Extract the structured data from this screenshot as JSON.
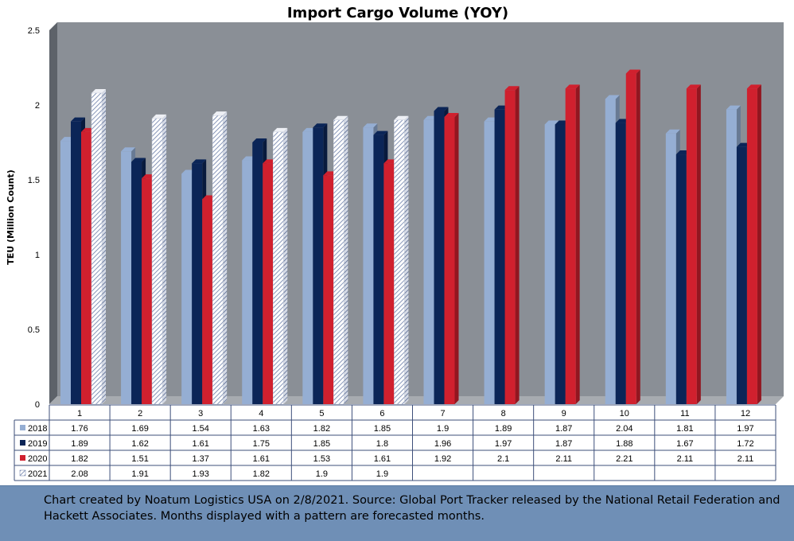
{
  "chart_data": {
    "type": "bar",
    "title": "Import Cargo Volume (YOY)",
    "xlabel": "",
    "ylabel": "TEU (Million Count)",
    "ylim": [
      0,
      2.5
    ],
    "yticks": [
      "0",
      "0.5",
      "1",
      "1.5",
      "2",
      "2.5"
    ],
    "categories": [
      "1",
      "2",
      "3",
      "4",
      "5",
      "6",
      "7",
      "8",
      "9",
      "10",
      "11",
      "12"
    ],
    "series": [
      {
        "name": "2018",
        "color": "#95aed3",
        "pattern": false,
        "values": [
          1.76,
          1.69,
          1.54,
          1.63,
          1.82,
          1.85,
          1.9,
          1.89,
          1.87,
          2.04,
          1.81,
          1.97
        ],
        "labels": [
          "1.76",
          "1.69",
          "1.54",
          "1.63",
          "1.82",
          "1.85",
          "1.9",
          "1.89",
          "1.87",
          "2.04",
          "1.81",
          "1.97"
        ]
      },
      {
        "name": "2019",
        "color": "#0b2557",
        "pattern": false,
        "values": [
          1.89,
          1.62,
          1.61,
          1.75,
          1.85,
          1.8,
          1.96,
          1.97,
          1.87,
          1.88,
          1.67,
          1.72
        ],
        "labels": [
          "1.89",
          "1.62",
          "1.61",
          "1.75",
          "1.85",
          "1.8",
          "1.96",
          "1.97",
          "1.87",
          "1.88",
          "1.67",
          "1.72"
        ]
      },
      {
        "name": "2020",
        "color": "#d0202e",
        "pattern": false,
        "values": [
          1.82,
          1.51,
          1.37,
          1.61,
          1.53,
          1.61,
          1.92,
          2.1,
          2.11,
          2.21,
          2.11,
          2.11
        ],
        "labels": [
          "1.82",
          "1.51",
          "1.37",
          "1.61",
          "1.53",
          "1.61",
          "1.92",
          "2.1",
          "2.11",
          "2.21",
          "2.11",
          "2.11"
        ]
      },
      {
        "name": "2021",
        "color": "#ffffff",
        "pattern": true,
        "values": [
          2.08,
          1.91,
          1.93,
          1.82,
          1.9,
          1.9,
          null,
          null,
          null,
          null,
          null,
          null
        ],
        "labels": [
          "2.08",
          "1.91",
          "1.93",
          "1.82",
          "1.9",
          "1.9",
          "",
          "",
          "",
          "",
          "",
          ""
        ]
      }
    ],
    "grid": false,
    "legend": "data-table",
    "background": "#8a8f96"
  },
  "footer": {
    "text": "Chart created by Noatum Logistics USA on 2/8/2021. Source: Global Port Tracker released by the National Retail Federation and Hackett Associates. Months displayed with a pattern are forecasted months."
  }
}
